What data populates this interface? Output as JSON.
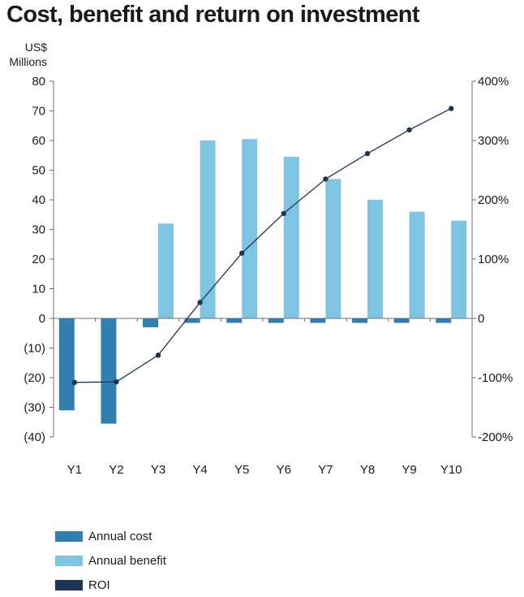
{
  "chart_data": {
    "type": "bar",
    "title": "Cost, benefit and return on investment",
    "y_unit_lines": [
      "US$",
      "Millions"
    ],
    "categories": [
      "Y1",
      "Y2",
      "Y3",
      "Y4",
      "Y5",
      "Y6",
      "Y7",
      "Y8",
      "Y9",
      "Y10"
    ],
    "series": [
      {
        "name": "Annual cost",
        "kind": "bar",
        "color": "#2f7fb0",
        "axis": "left",
        "values": [
          -31,
          -35.5,
          -3,
          -1.5,
          -1.5,
          -1.5,
          -1.5,
          -1.5,
          -1.5,
          -1.5
        ]
      },
      {
        "name": "Annual benefit",
        "kind": "bar",
        "color": "#7ec4e3",
        "axis": "left",
        "values": [
          0,
          0,
          32,
          60,
          60.5,
          54.5,
          47,
          40,
          36,
          33
        ]
      },
      {
        "name": "ROI",
        "kind": "line",
        "color": "#1c3553",
        "axis": "right",
        "values": [
          -108,
          -107,
          -62,
          27,
          110,
          177,
          235,
          278,
          318,
          354
        ]
      }
    ],
    "y_left": {
      "min": -40,
      "max": 80,
      "step": 10,
      "tick_labels": [
        "80",
        "70",
        "60",
        "50",
        "40",
        "30",
        "20",
        "10",
        "0",
        "(10)",
        "(20)",
        "(30)",
        "(40)"
      ]
    },
    "y_right": {
      "min": -200,
      "max": 400,
      "ticks": [
        400,
        300,
        200,
        100,
        0,
        -100,
        -200
      ],
      "tick_labels": [
        "400%",
        "300%",
        "200%",
        "100%",
        "0",
        "-100%",
        "-200%"
      ]
    },
    "grid": false,
    "legend_position": "bottom-left"
  }
}
